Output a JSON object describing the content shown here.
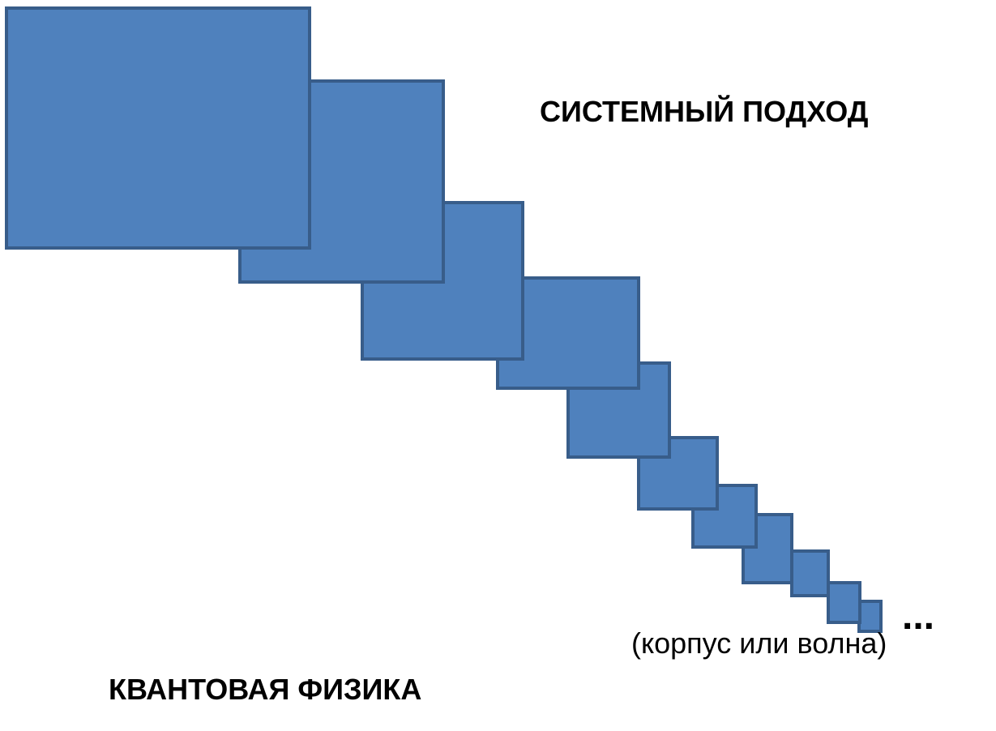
{
  "diagram": {
    "title_top": "СИСТЕМНЫЙ ПОДХОД",
    "title_bottom": "КВАНТОВАЯ ФИЗИКА",
    "ellipsis": "...",
    "caption": "(корпус или волна)",
    "box_fill": "#4f81bd",
    "box_stroke": "#385d8a",
    "box_count": 12
  }
}
